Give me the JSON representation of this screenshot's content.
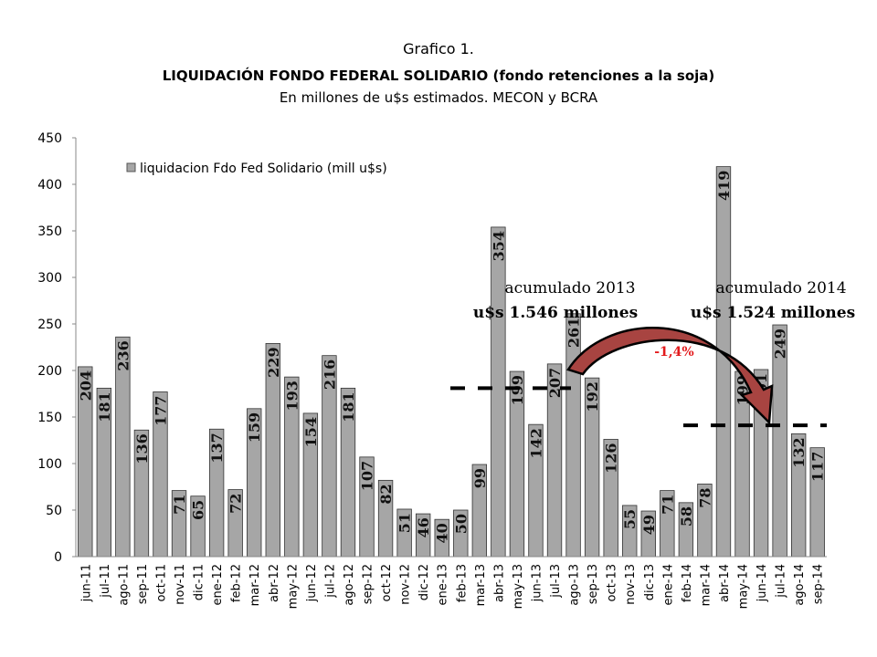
{
  "chart_data": {
    "type": "bar",
    "title": "Grafico 1.",
    "subtitle": "LIQUIDACIÓN FONDO FEDERAL SOLIDARIO (fondo retenciones a la soja)",
    "subtitle2": "En millones de u$s estimados. MECON y BCRA",
    "xlabel": "",
    "ylabel": "",
    "ylim": [
      0,
      450
    ],
    "yticks": [
      0,
      50,
      100,
      150,
      200,
      250,
      300,
      350,
      400,
      450
    ],
    "grid": false,
    "legend_position": "top-left",
    "bar_color": "#a6a6a6",
    "categories": [
      "jun-11",
      "jul-11",
      "ago-11",
      "sep-11",
      "oct-11",
      "nov-11",
      "dic-11",
      "ene-12",
      "feb-12",
      "mar-12",
      "abr-12",
      "may-12",
      "jun-12",
      "jul-12",
      "ago-12",
      "sep-12",
      "oct-12",
      "nov-12",
      "dic-12",
      "ene-13",
      "feb-13",
      "mar-13",
      "abr-13",
      "may-13",
      "jun-13",
      "jul-13",
      "ago-13",
      "sep-13",
      "oct-13",
      "nov-13",
      "dic-13",
      "ene-14",
      "feb-14",
      "mar-14",
      "abr-14",
      "may-14",
      "jun-14",
      "jul-14",
      "ago-14",
      "sep-14"
    ],
    "series": [
      {
        "name": "liquidacion Fdo Fed Solidario (mill u$s)",
        "values": [
          204,
          181,
          236,
          136,
          177,
          71,
          65,
          137,
          72,
          159,
          229,
          193,
          154,
          216,
          181,
          107,
          82,
          51,
          46,
          40,
          50,
          99,
          354,
          199,
          142,
          207,
          261,
          192,
          126,
          55,
          49,
          71,
          58,
          78,
          419,
          199,
          201,
          249,
          132,
          117
        ]
      }
    ],
    "annotations": {
      "acum2013_label": "acumulado 2013",
      "acum2013_value": "u$s 1.546 millones",
      "acum2014_label": "acumulado 2014",
      "acum2014_value": "u$s 1.524 millones",
      "change": "-1,4%",
      "change_color": "#e31a1c",
      "arrow_color": "#a84441",
      "avg2013": 181,
      "avg2014": 141
    }
  }
}
